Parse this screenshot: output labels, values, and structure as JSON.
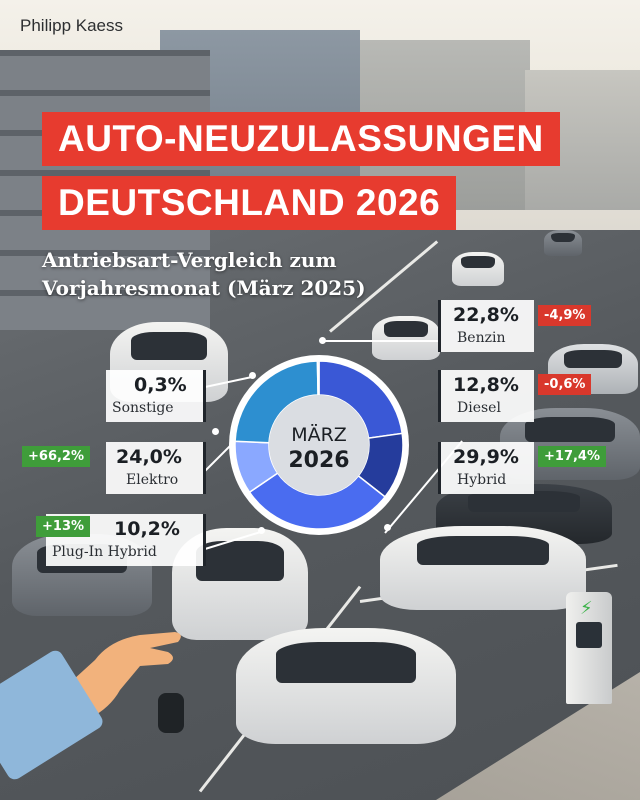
{
  "author": "Philipp Kaess",
  "title": {
    "line1": "AUTO-NEUZULASSUNGEN",
    "line2": "DEUTSCHLAND 2026"
  },
  "subtitle": "Antriebsart-Vergleich zum Vorjahresmonat (März 2025)",
  "donut_center": {
    "month": "MÄRZ",
    "year": "2026"
  },
  "colors": {
    "title_band": "#e73b2f",
    "badge_negative": "#d9382c",
    "badge_positive": "#3f9d3a"
  },
  "chart_data": {
    "type": "pie",
    "style": "donut",
    "title": "AUTO-NEUZULASSUNGEN DEUTSCHLAND 2026",
    "subtitle": "Antriebsart-Vergleich zum Vorjahresmonat (März 2025)",
    "center_label": "MÄRZ 2026",
    "unit": "%",
    "slices": [
      {
        "label": "Benzin",
        "value": 22.8,
        "value_text": "22,8%",
        "change": -4.9,
        "change_text": "-4,9%",
        "color": "#3a58d6"
      },
      {
        "label": "Diesel",
        "value": 12.8,
        "value_text": "12,8%",
        "change": -0.6,
        "change_text": "-0,6%",
        "color": "#253c9c"
      },
      {
        "label": "Hybrid",
        "value": 29.9,
        "value_text": "29,9%",
        "change": 17.4,
        "change_text": "+17,4%",
        "color": "#4a6cf0"
      },
      {
        "label": "Plug-In Hybrid",
        "value": 10.2,
        "value_text": "10,2%",
        "change": 13,
        "change_text": "+13%",
        "color": "#8aa8ff"
      },
      {
        "label": "Elektro",
        "value": 24.0,
        "value_text": "24,0%",
        "change": 66.2,
        "change_text": "+66,2%",
        "color": "#2d8fd0"
      },
      {
        "label": "Sonstige",
        "value": 0.3,
        "value_text": "0,3%",
        "change": null,
        "change_text": "",
        "color": "#7a8a9a"
      }
    ]
  }
}
